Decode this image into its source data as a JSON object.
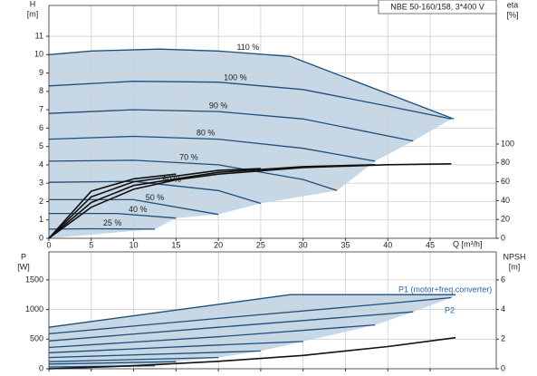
{
  "chart_data": [
    {
      "type": "line",
      "title": "NBE 50-160/158, 3*400 V",
      "x_label": "Q [m³/h]",
      "y_label": "H",
      "y_unit": "[m]",
      "y2_label": "eta",
      "y2_unit": "[%]",
      "xlim": [
        0,
        52.8
      ],
      "ylim": [
        0,
        12.68
      ],
      "y2lim": [
        0,
        247
      ],
      "xticks": [
        0,
        5,
        10,
        15,
        20,
        25,
        30,
        35,
        40,
        45
      ],
      "yticks": [
        0,
        1,
        2,
        3,
        4,
        5,
        6,
        7,
        8,
        9,
        10,
        11
      ],
      "y2ticks": [
        0,
        20,
        40,
        60,
        80,
        100
      ],
      "grid": true,
      "area_color": "#c6d7e6",
      "series": [
        {
          "name": "110 %",
          "color": "#1f4e79",
          "x": [
            0,
            5,
            13,
            20,
            28.5,
            47.8
          ],
          "values": [
            10.0,
            10.2,
            10.3,
            10.2,
            9.9,
            6.5
          ]
        },
        {
          "name": "100 %",
          "color": "#1f4e79",
          "x": [
            0,
            10,
            20,
            30,
            40,
            47.5
          ],
          "values": [
            8.3,
            8.55,
            8.5,
            8.1,
            7.2,
            6.5
          ]
        },
        {
          "name": "90 %",
          "color": "#1f4e79",
          "x": [
            0,
            10,
            20,
            30,
            43
          ],
          "values": [
            6.8,
            7.0,
            6.9,
            6.5,
            5.3
          ]
        },
        {
          "name": "80 %",
          "color": "#1f4e79",
          "x": [
            0,
            10,
            20,
            30,
            38.5
          ],
          "values": [
            5.4,
            5.55,
            5.4,
            4.9,
            4.2
          ]
        },
        {
          "name": "70 %",
          "color": "#1f4e79",
          "x": [
            0,
            10,
            20,
            30,
            34
          ],
          "values": [
            4.2,
            4.25,
            4.0,
            3.2,
            2.6
          ]
        },
        {
          "name": "60 %",
          "color": "#1f4e79",
          "x": [
            0,
            10,
            20,
            25
          ],
          "values": [
            3.05,
            3.1,
            2.6,
            1.9
          ]
        },
        {
          "name": "50 %",
          "color": "#1f4e79",
          "x": [
            0,
            10,
            20
          ],
          "values": [
            2.1,
            2.1,
            1.3
          ]
        },
        {
          "name": "40 %",
          "color": "#1f4e79",
          "x": [
            0,
            8,
            15
          ],
          "values": [
            1.35,
            1.35,
            1.1
          ]
        },
        {
          "name": "25 %",
          "color": "#1f4e79",
          "x": [
            0,
            5,
            12.5
          ],
          "values": [
            0.5,
            0.52,
            0.5
          ]
        },
        {
          "color": "#111111",
          "axis": "y2",
          "x": [
            0,
            5,
            10,
            15,
            20,
            30,
            40,
            47.5
          ],
          "values": [
            0,
            33,
            52,
            62,
            68,
            75,
            78,
            79
          ]
        },
        {
          "color": "#111111",
          "axis": "y2",
          "x": [
            0,
            5,
            10,
            20,
            30,
            38.5
          ],
          "values": [
            0,
            38,
            56,
            70,
            76,
            78
          ]
        },
        {
          "color": "#111111",
          "axis": "y2",
          "x": [
            0,
            5,
            10,
            20,
            25
          ],
          "values": [
            0,
            44,
            60,
            72,
            74
          ]
        },
        {
          "color": "#111111",
          "axis": "y2",
          "x": [
            0,
            5,
            10,
            15
          ],
          "values": [
            0,
            50,
            63,
            68
          ]
        }
      ]
    },
    {
      "type": "line",
      "y_label": "P",
      "y_unit": "[W]",
      "y2_label": "NPSH",
      "y2_unit": "[m]",
      "annotations": [
        "P1 (motor+freq.converter)",
        "P2"
      ],
      "xlim": [
        0,
        52.8
      ],
      "ylim": [
        0,
        1972
      ],
      "y2lim": [
        0,
        7.89
      ],
      "xticks": [
        0,
        5,
        10,
        15,
        20,
        25,
        30,
        35,
        40,
        45
      ],
      "yticks": [
        0,
        500,
        1000,
        1500
      ],
      "y2ticks": [
        0,
        2,
        4,
        6
      ],
      "grid": true,
      "area_color": "#c6d7e6",
      "series": [
        {
          "color": "#1f4e79",
          "x": [
            0,
            28.5,
            48
          ],
          "values": [
            700,
            1250,
            1250
          ]
        },
        {
          "color": "#1f4e79",
          "x": [
            0,
            20,
            40,
            47.5
          ],
          "values": [
            590,
            850,
            1100,
            1200
          ]
        },
        {
          "color": "#1f4e79",
          "x": [
            0,
            20,
            43
          ],
          "values": [
            470,
            700,
            960
          ]
        },
        {
          "color": "#1f4e79",
          "x": [
            0,
            20,
            38.5
          ],
          "values": [
            360,
            540,
            740
          ]
        },
        {
          "color": "#1f4e79",
          "x": [
            0,
            20,
            30
          ],
          "values": [
            270,
            400,
            460
          ]
        },
        {
          "color": "#1f4e79",
          "x": [
            0,
            25
          ],
          "values": [
            190,
            300
          ]
        },
        {
          "color": "#1f4e79",
          "x": [
            0,
            20
          ],
          "values": [
            120,
            190
          ]
        },
        {
          "color": "#1f4e79",
          "x": [
            0,
            15
          ],
          "values": [
            80,
            120
          ]
        },
        {
          "color": "#1f4e79",
          "x": [
            0,
            12.5
          ],
          "values": [
            30,
            50
          ]
        },
        {
          "color": "#111111",
          "axis": "y2",
          "x": [
            0,
            10,
            20,
            30,
            40,
            48
          ],
          "values": [
            0,
            0.2,
            0.5,
            0.9,
            1.5,
            2.1
          ]
        }
      ]
    }
  ]
}
